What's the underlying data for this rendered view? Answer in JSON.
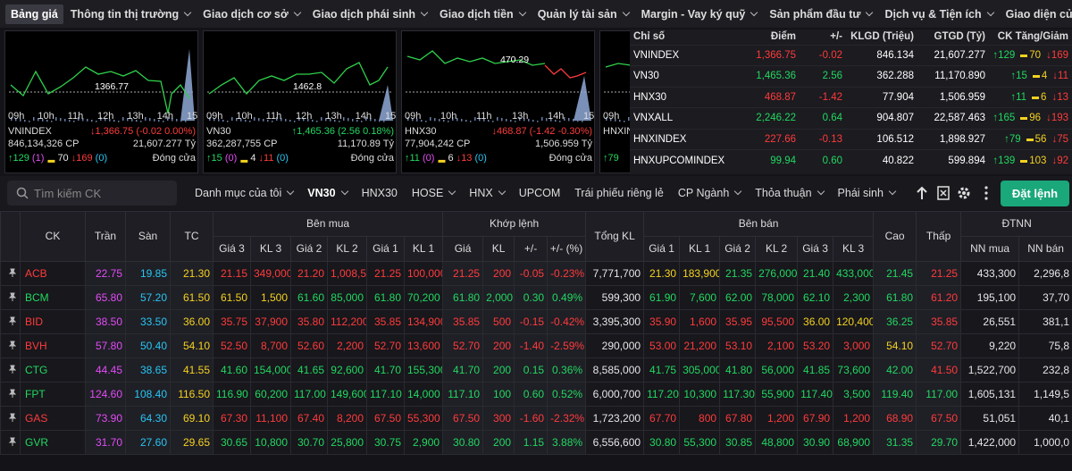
{
  "nav": {
    "items": [
      "Bảng giá",
      "Thông tin thị trường",
      "Giao dịch cơ sở",
      "Giao dịch phái sinh",
      "Giao dịch tiền",
      "Quản lý tài sản",
      "Margin - Vay ký quỹ",
      "Sản phẩm đầu tư",
      "Dịch vụ & Tiện ích",
      "Giao diện của tôi"
    ]
  },
  "index_panels": [
    {
      "name": "VNINDEX",
      "ref_label": "1366.77",
      "times": [
        "09h",
        "10h",
        "11h",
        "12h",
        "13h",
        "14h",
        "15h"
      ],
      "change": "↓1,366.75 (-0.02 0.00%)",
      "direction": "down",
      "volume": "846,134,326 CP",
      "value": "21,607.277 Tỷ",
      "up": "↑129",
      "ceiling": "(1)",
      "unchanged": "70",
      "down": "↓169",
      "floor": "(0)",
      "status": "Đóng cửa"
    },
    {
      "name": "VN30",
      "ref_label": "1462.8",
      "times": [
        "09h",
        "10h",
        "11h",
        "12h",
        "13h",
        "14h",
        "15h"
      ],
      "change": "↑1,465.36 (2.56 0.18%)",
      "direction": "up",
      "volume": "362,287,755 CP",
      "value": "11,170.89 Tỷ",
      "up": "↑15",
      "ceiling": "(0)",
      "unchanged": "4",
      "down": "↓11",
      "floor": "(0)",
      "status": "Đóng cửa"
    },
    {
      "name": "HNX30",
      "ref_label": "470.29",
      "times": [
        "09h",
        "10h",
        "11h",
        "13h",
        "14h",
        "15h"
      ],
      "change": "↓468.87 (-1.42 -0.30%)",
      "direction": "down",
      "volume": "77,904,242 CP",
      "value": "1,506.959 Tỷ",
      "up": "↑11",
      "ceiling": "(0)",
      "unchanged": "6",
      "down": "↓13",
      "floor": "(0)",
      "status": "Đóng cửa"
    },
    {
      "name": "HNXINDEX",
      "times": [
        "09h"
      ],
      "up": "↑79"
    }
  ],
  "index_table": {
    "headers": [
      "Chỉ số",
      "Điểm",
      "+/-",
      "KLGD (Triệu)",
      "GTGD (Tỷ)",
      "CK Tăng/Giảm"
    ],
    "rows": [
      [
        "VNINDEX",
        "1,366.75",
        "-0.02",
        "846.134",
        "21,607.277",
        "↑129",
        "70",
        "↓169"
      ],
      [
        "VN30",
        "1,465.36",
        "2.56",
        "362.288",
        "11,170.890",
        "↑15",
        "4",
        "↓11"
      ],
      [
        "HNX30",
        "468.87",
        "-1.42",
        "77.904",
        "1,506.959",
        "↑11",
        "6",
        "↓13"
      ],
      [
        "VNXALL",
        "2,246.22",
        "0.64",
        "904.807",
        "22,587.463",
        "↑165",
        "96",
        "↓193"
      ],
      [
        "HNXINDEX",
        "227.66",
        "-0.13",
        "106.512",
        "1,898.927",
        "↑79",
        "56",
        "↓75"
      ],
      [
        "HNXUPCOMINDEX",
        "99.94",
        "0.60",
        "40.822",
        "599.894",
        "↑139",
        "103",
        "↓92"
      ]
    ]
  },
  "toolbar": {
    "search_placeholder": "Tìm kiếm CK",
    "tabs": [
      {
        "label": "Danh mục của tôi",
        "dropdown": true
      },
      {
        "label": "VN30",
        "dropdown": true
      },
      {
        "label": "HNX30",
        "dropdown": false
      },
      {
        "label": "HOSE",
        "dropdown": true
      },
      {
        "label": "HNX",
        "dropdown": true
      },
      {
        "label": "UPCOM",
        "dropdown": false
      },
      {
        "label": "Trái phiếu riêng lẻ",
        "dropdown": false
      },
      {
        "label": "CP Ngành",
        "dropdown": true
      },
      {
        "label": "Thỏa thuận",
        "dropdown": true
      },
      {
        "label": "Phái sinh",
        "dropdown": true
      }
    ],
    "active_tab": 1,
    "order_button": "Đặt lệnh"
  },
  "board": {
    "headers": {
      "symbol": "CK",
      "ceiling": "Trần",
      "floor": "Sàn",
      "ref": "TC",
      "buy": "Bên mua",
      "buy_cols": [
        "Giá 3",
        "KL 3",
        "Giá 2",
        "KL 2",
        "Giá 1",
        "KL 1"
      ],
      "match": "Khớp lệnh",
      "match_cols": [
        "Giá",
        "KL",
        "+/-",
        "+/- (%)"
      ],
      "total": "Tổng KL",
      "sell": "Bên bán",
      "sell_cols": [
        "Giá 1",
        "KL 1",
        "Giá 2",
        "KL 2",
        "Giá 3",
        "KL 3"
      ],
      "high": "Cao",
      "low": "Thấp",
      "foreign": "ĐTNN",
      "foreign_cols": [
        "NN mua",
        "NN bán"
      ]
    },
    "rows": [
      [
        "ACB",
        "22.75",
        "19.85",
        "21.30",
        "21.15",
        "349,000",
        "21.20",
        "1,008,500",
        "21.25",
        "100,000",
        "21.25",
        "200",
        "-0.05",
        "-0.23%",
        "7,771,700",
        "21.30",
        "183,900",
        "21.35",
        "276,000",
        "21.40",
        "433,000",
        "21.45",
        "21.25",
        "433,300",
        "2,296,8"
      ],
      [
        "BCM",
        "65.80",
        "57.20",
        "61.50",
        "61.50",
        "1,500",
        "61.60",
        "85,000",
        "61.80",
        "70,200",
        "61.80",
        "2,000",
        "0.30",
        "0.49%",
        "599,300",
        "61.90",
        "7,600",
        "62.00",
        "78,000",
        "62.10",
        "2,300",
        "61.80",
        "61.20",
        "195,100",
        "37,70"
      ],
      [
        "BID",
        "38.50",
        "33.50",
        "36.00",
        "35.75",
        "37,900",
        "35.80",
        "112,200",
        "35.85",
        "134,900",
        "35.85",
        "500",
        "-0.15",
        "-0.42%",
        "3,395,300",
        "35.90",
        "1,600",
        "35.95",
        "95,500",
        "36.00",
        "120,400",
        "36.25",
        "35.85",
        "26,551",
        "381,1"
      ],
      [
        "BVH",
        "57.80",
        "50.40",
        "54.10",
        "52.50",
        "8,700",
        "52.60",
        "2,200",
        "52.70",
        "13,600",
        "52.70",
        "200",
        "-1.40",
        "-2.59%",
        "290,000",
        "53.00",
        "21,200",
        "53.10",
        "2,100",
        "53.20",
        "3,000",
        "54.10",
        "52.70",
        "9,220",
        "75,8"
      ],
      [
        "CTG",
        "44.45",
        "38.65",
        "41.55",
        "41.60",
        "154,000",
        "41.65",
        "92,600",
        "41.70",
        "155,300",
        "41.70",
        "200",
        "0.15",
        "0.36%",
        "8,585,000",
        "41.75",
        "305,000",
        "41.80",
        "56,000",
        "41.85",
        "73,600",
        "42.00",
        "41.50",
        "1,522,700",
        "232,8"
      ],
      [
        "FPT",
        "124.60",
        "108.40",
        "116.50",
        "116.90",
        "60,200",
        "117.00",
        "149,600",
        "117.10",
        "14,000",
        "117.10",
        "100",
        "0.60",
        "0.52%",
        "6,000,700",
        "117.20",
        "10,300",
        "117.30",
        "55,900",
        "117.40",
        "3,500",
        "119.40",
        "117.00",
        "1,605,131",
        "1,149,5"
      ],
      [
        "GAS",
        "73.90",
        "64.30",
        "69.10",
        "67.30",
        "11,100",
        "67.40",
        "8,200",
        "67.50",
        "55,300",
        "67.50",
        "300",
        "-1.60",
        "-2.32%",
        "1,723,200",
        "67.70",
        "800",
        "67.80",
        "1,200",
        "67.90",
        "1,200",
        "68.90",
        "67.50",
        "51,051",
        "40,1"
      ],
      [
        "GVR",
        "31.70",
        "27.60",
        "29.65",
        "30.65",
        "10,800",
        "30.70",
        "25,800",
        "30.75",
        "2,900",
        "30.80",
        "200",
        "1.15",
        "3.88%",
        "6,556,600",
        "30.80",
        "55,300",
        "30.85",
        "48,800",
        "30.90",
        "68,900",
        "31.35",
        "29.70",
        "1,422,000",
        "1,000,0"
      ]
    ]
  }
}
